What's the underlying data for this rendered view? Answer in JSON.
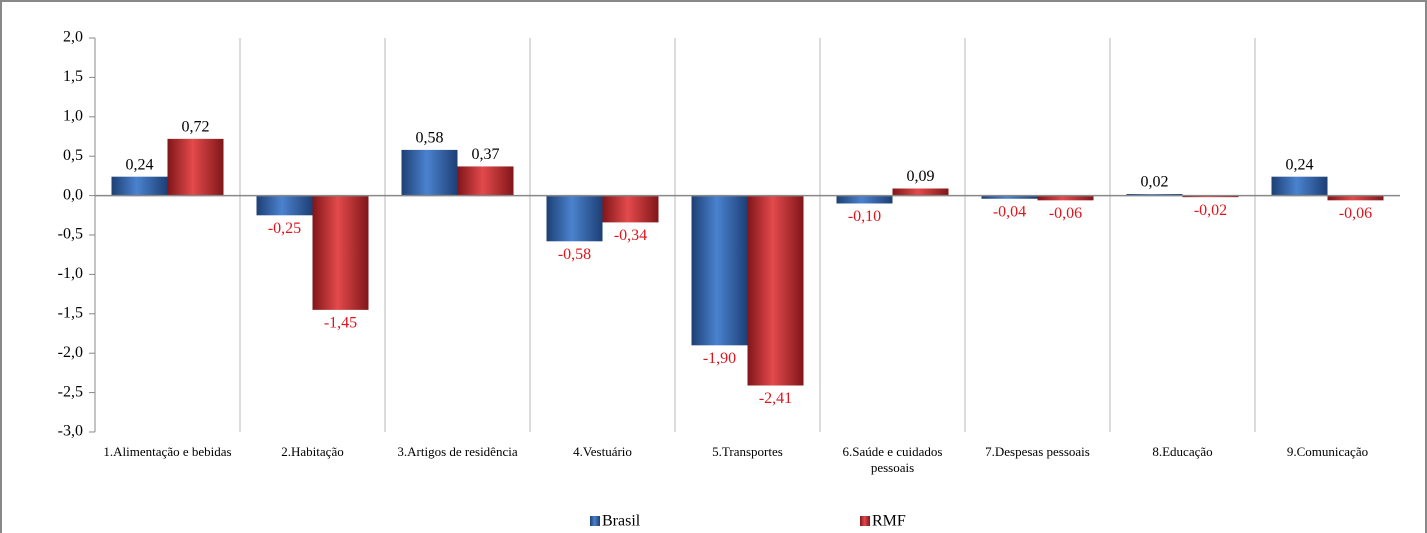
{
  "chart_data": {
    "type": "bar",
    "categories": [
      "1.Alimentação e bebidas",
      "2.Habitação",
      "3.Artigos de residência",
      "4.Vestuário",
      "5.Transportes",
      "6.Saúde e cuidados pessoais",
      "7.Despesas pessoais",
      "8.Educação",
      "9.Comunicação"
    ],
    "series": [
      {
        "name": "Brasil",
        "color": "#2f63ad",
        "values": [
          0.24,
          -0.25,
          0.58,
          -0.58,
          -1.9,
          -0.1,
          -0.04,
          0.02,
          0.24
        ],
        "value_labels": [
          "0,24",
          "-0,25",
          "0,58",
          "-0,58",
          "-1,90",
          "-0,10",
          "-0,04",
          "0,02",
          "0,24"
        ]
      },
      {
        "name": "RMF",
        "color": "#c8282c",
        "values": [
          0.72,
          -1.45,
          0.37,
          -0.34,
          -2.41,
          0.09,
          -0.06,
          -0.02,
          -0.06
        ],
        "value_labels": [
          "0,72",
          "-1,45",
          "0,37",
          "-0,34",
          "-2,41",
          "0,09",
          "-0,06",
          "-0,02",
          "-0,06"
        ]
      }
    ],
    "ylim": [
      -3,
      2
    ],
    "yticks": [
      {
        "value": -3,
        "label": "-3,0"
      },
      {
        "value": -2.5,
        "label": "-2,5"
      },
      {
        "value": -2,
        "label": "-2,0"
      },
      {
        "value": -1.5,
        "label": "-1,5"
      },
      {
        "value": -1,
        "label": "-1,0"
      },
      {
        "value": -0.5,
        "label": "-0,5"
      },
      {
        "value": 0,
        "label": "0,0"
      },
      {
        "value": 0.5,
        "label": "0,5"
      },
      {
        "value": 1,
        "label": "1,0"
      },
      {
        "value": 1.5,
        "label": "1,5"
      },
      {
        "value": 2,
        "label": "2,0"
      }
    ],
    "legend": "bottom"
  }
}
